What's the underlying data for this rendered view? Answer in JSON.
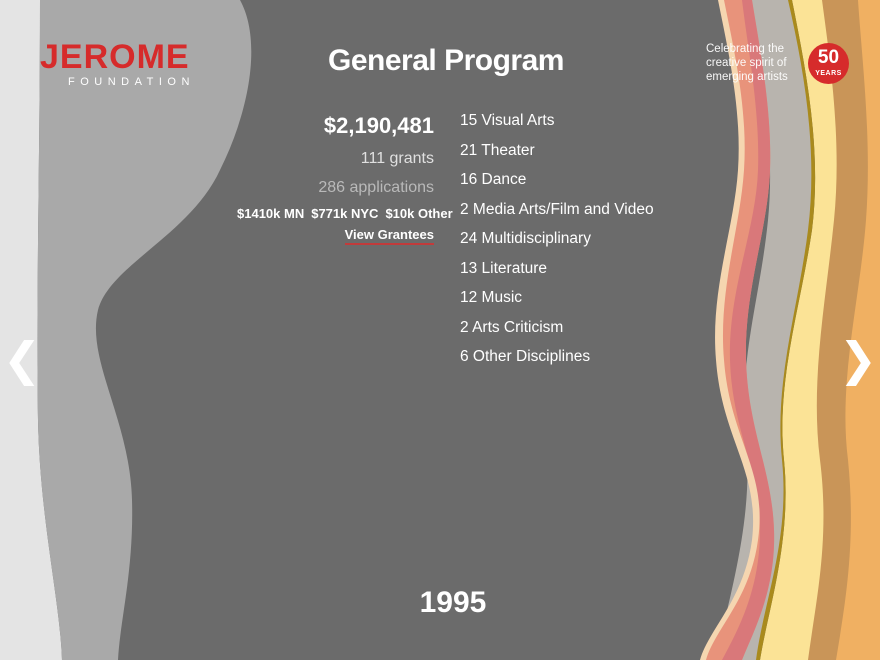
{
  "brand": {
    "logo_word": "JEROME",
    "logo_sub": "FOUNDATION",
    "tagline": "Celebrating the creative spirit of emerging artists",
    "badge_number": "50",
    "badge_label": "YEARS",
    "brand_color": "#d62b2b"
  },
  "program": {
    "title": "General Program",
    "total": "$2,190,481",
    "grants": "111 grants",
    "applications": "286 applications",
    "split": [
      "$1410k MN",
      "$771k NYC",
      "$10k Other"
    ],
    "view_label": "View Grantees"
  },
  "disciplines": [
    "15 Visual Arts",
    "21 Theater",
    "16 Dance",
    "2 Media Arts/Film and Video",
    "24 Multidisciplinary",
    "13 Literature",
    "12 Music",
    "2 Arts Criticism",
    "6 Other Disciplines"
  ],
  "year": "1995",
  "nav": {
    "prev_icon": "chevron-left-icon",
    "next_icon": "chevron-right-icon",
    "prev_glyph": "❮",
    "next_glyph": "❯"
  },
  "colors": {
    "background": "#6b6b6b",
    "stripe_light": "#e4e4e4",
    "stripe_mid": "#a9a9a9",
    "wave_grey": "#b8b4ae",
    "wave_pink": "#d9787a",
    "wave_salmon": "#e8937b",
    "wave_yellow": "#fbe396",
    "wave_olive": "#a98a1d",
    "wave_tan": "#c99558",
    "wave_orange": "#f0b062"
  }
}
